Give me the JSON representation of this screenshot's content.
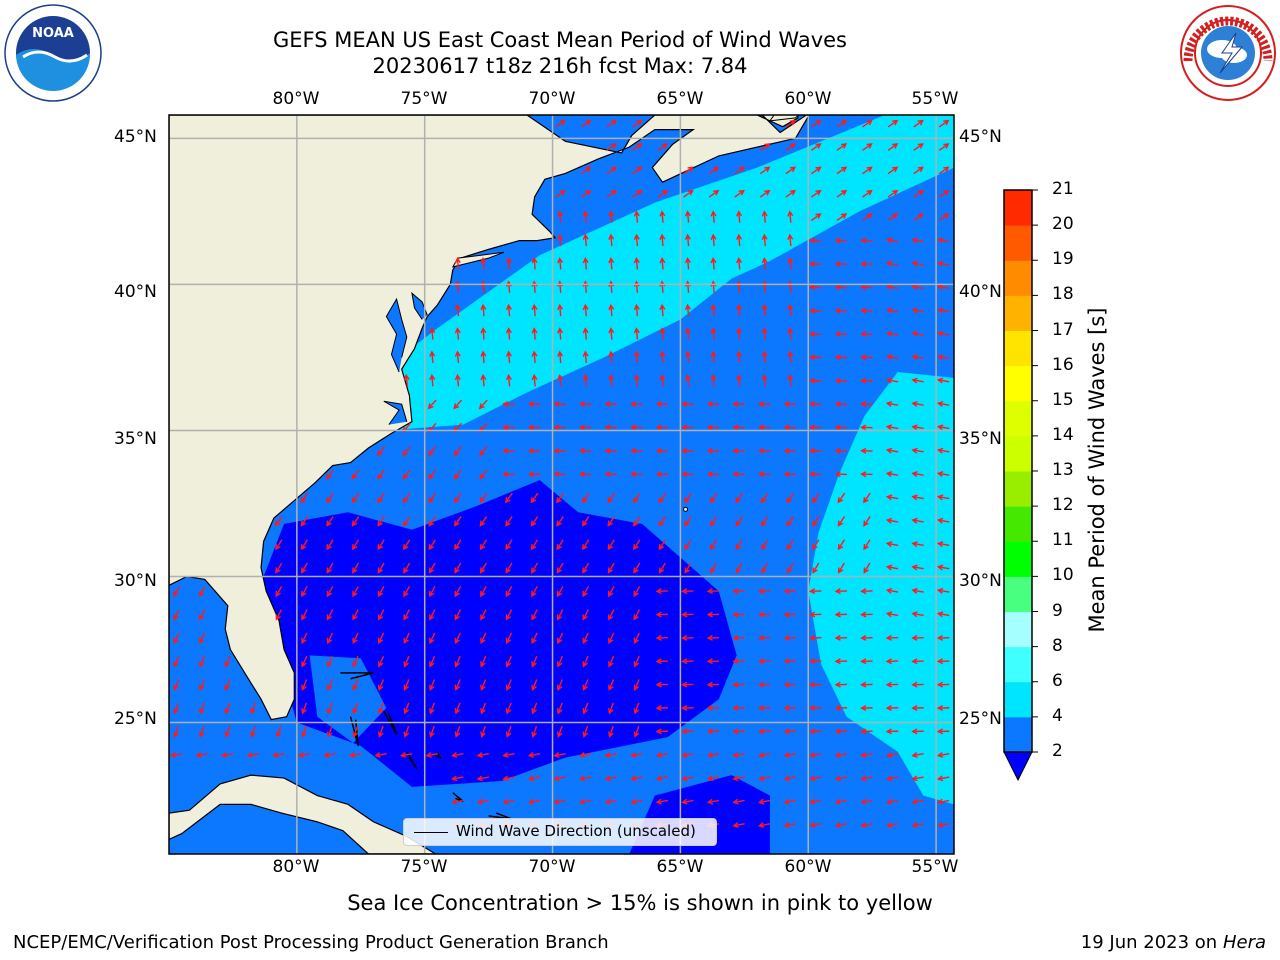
{
  "header": {
    "title_line1": "GEFS MEAN US East Coast Mean Period of Wind Waves",
    "title_line2": "20230617 t18z 216h fcst   Max: 7.84"
  },
  "logos": {
    "noaa_text": "NOAA",
    "noaa_ring_text": "NATIONAL OCEANIC AND ATMOSPHERIC ADMINISTRATION · U.S. DEPARTMENT OF COMMERCE",
    "nws_ring_text": "NATIONAL WEATHER SERVICE"
  },
  "map": {
    "lon_ticks": [
      "80°W",
      "75°W",
      "70°W",
      "65°W",
      "60°W",
      "55°W"
    ],
    "lat_ticks": [
      "45°N",
      "40°N",
      "35°N",
      "30°N",
      "25°N"
    ],
    "lon_values": [
      -80,
      -75,
      -70,
      -65,
      -60,
      -55
    ],
    "lat_values": [
      45,
      40,
      35,
      30,
      25
    ],
    "extent": {
      "lon_min": -85,
      "lon_max": -54.3,
      "lat_min": 20.5,
      "lat_max": 45.8
    },
    "legend_label": "Wind Wave Direction (unscaled)",
    "land_color": "#efefdb",
    "arrow_color": "#ff1a1a"
  },
  "colorbar": {
    "label": "Mean Period of Wind Waves [s]",
    "ticks": [
      "2",
      "4",
      "6",
      "8",
      "9",
      "10",
      "11",
      "12",
      "13",
      "14",
      "15",
      "16",
      "17",
      "18",
      "19",
      "20",
      "21"
    ],
    "tick_values": [
      2,
      4,
      6,
      8,
      9,
      10,
      11,
      12,
      13,
      14,
      15,
      16,
      17,
      18,
      19,
      20,
      21
    ],
    "colors": [
      "#0b78ff",
      "#00e5ff",
      "#40ffff",
      "#a6ffff",
      "#48ff80",
      "#00ff00",
      "#45e800",
      "#99ee00",
      "#ccff00",
      "#ddff00",
      "#ffff00",
      "#ffe400",
      "#ffb300",
      "#ff8c00",
      "#ff5a00",
      "#ff2a00"
    ],
    "under_color": "#0000ff"
  },
  "footer": {
    "sea_ice_note": "Sea Ice Concentration > 15% is shown in pink to yellow",
    "branch": "NCEP/EMC/Verification Post Processing Product Generation Branch",
    "date": "19 Jun 2023 on",
    "host": "Hera"
  }
}
